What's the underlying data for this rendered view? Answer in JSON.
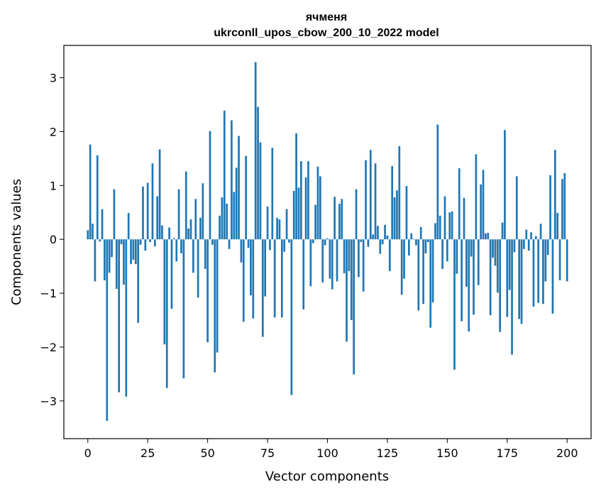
{
  "chart_data": {
    "type": "bar",
    "title": "ячменя",
    "subtitle": "ukrconll_upos_cbow_200_10_2022 model",
    "xlabel": "Vector components",
    "ylabel": "Components values",
    "xlim": [
      -10,
      210
    ],
    "ylim": [
      -3.7,
      3.6
    ],
    "xticks": [
      0,
      25,
      50,
      75,
      100,
      125,
      150,
      175,
      200
    ],
    "yticks": [
      -3,
      -2,
      -1,
      0,
      1,
      2,
      3
    ],
    "ytick_labels": [
      "−3",
      "−2",
      "−1",
      "0",
      "1",
      "2",
      "3"
    ],
    "grid": false,
    "legend": "none",
    "bar_color": "#1f77b4",
    "values": [
      0.17,
      1.76,
      0.29,
      -0.78,
      1.56,
      -0.04,
      0.56,
      -0.76,
      -3.37,
      -0.62,
      -0.33,
      0.93,
      -0.92,
      -2.84,
      -0.09,
      -0.84,
      -2.92,
      0.49,
      -0.46,
      -0.38,
      -0.46,
      -1.55,
      -0.1,
      0.98,
      -0.21,
      1.05,
      -0.05,
      1.41,
      -0.13,
      0.8,
      1.67,
      0.26,
      -1.95,
      -2.76,
      0.22,
      -1.29,
      0.02,
      -0.41,
      0.93,
      -0.26,
      -2.58,
      1.26,
      0.2,
      0.37,
      -0.62,
      0.75,
      -1.08,
      0.4,
      1.04,
      -0.55,
      -1.91,
      2.01,
      -0.1,
      -2.47,
      -2.1,
      0.44,
      0.78,
      2.39,
      0.66,
      -0.18,
      2.21,
      0.88,
      1.33,
      1.92,
      -0.43,
      -1.53,
      1.55,
      -0.16,
      -1.04,
      -1.47,
      3.29,
      2.46,
      1.8,
      -1.81,
      -1.06,
      0.61,
      -0.2,
      1.7,
      -1.45,
      0.4,
      0.37,
      -1.45,
      -0.23,
      0.56,
      -0.06,
      -2.89,
      0.9,
      1.97,
      0.96,
      1.45,
      -1.3,
      1.15,
      1.45,
      -0.87,
      -0.07,
      0.64,
      1.35,
      1.17,
      -0.8,
      -0.11,
      0.02,
      -0.73,
      -0.93,
      0.79,
      -0.78,
      0.66,
      0.75,
      -0.63,
      -1.9,
      -0.59,
      -1.5,
      -2.51,
      0.93,
      -0.7,
      -0.05,
      -0.97,
      1.47,
      -0.14,
      1.66,
      0.09,
      1.41,
      0.25,
      -0.27,
      -0.09,
      0.27,
      0.07,
      -0.59,
      1.36,
      0.78,
      0.91,
      1.73,
      -1.03,
      -0.73,
      0.99,
      -0.3,
      0.11,
      0.01,
      -0.11,
      -1.32,
      0.23,
      -1.2,
      -0.26,
      -0.05,
      -1.64,
      -1.17,
      0.3,
      2.13,
      0.44,
      -0.55,
      0.8,
      -0.41,
      0.5,
      0.52,
      -2.42,
      -0.64,
      1.32,
      -1.52,
      0.77,
      -0.88,
      -1.71,
      -0.32,
      -1.4,
      1.58,
      -0.85,
      1.02,
      1.29,
      0.11,
      0.12,
      -1.41,
      -0.34,
      -0.49,
      -0.99,
      -1.72,
      0.31,
      2.03,
      -1.44,
      -0.94,
      -2.14,
      -0.24,
      1.17,
      -1.48,
      -1.57,
      -0.18,
      0.18,
      -0.21,
      0.13,
      -1.25,
      0.06,
      -1.18,
      0.29,
      -1.2,
      -0.78,
      -0.29,
      1.19,
      -1.38,
      1.66,
      0.49,
      -0.76,
      1.12,
      1.23,
      -0.78
    ]
  }
}
